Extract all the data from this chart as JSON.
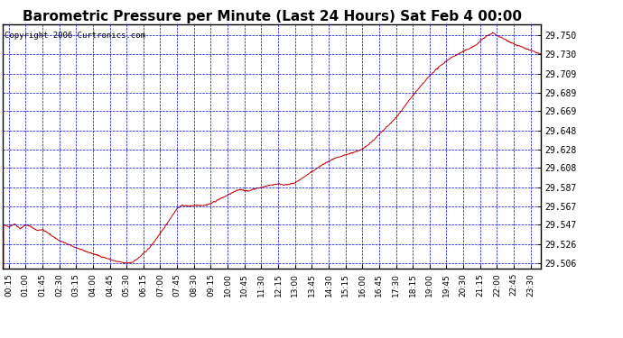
{
  "title": "Barometric Pressure per Minute (Last 24 Hours) Sat Feb 4 00:00",
  "copyright": "Copyright 2006 Curtronics.com",
  "line_color": "#cc0000",
  "background_color": "#ffffff",
  "plot_bg_color": "#ffffff",
  "grid_color": "#0000cc",
  "yticks": [
    29.506,
    29.526,
    29.547,
    29.567,
    29.587,
    29.608,
    29.628,
    29.648,
    29.669,
    29.689,
    29.709,
    29.73,
    29.75
  ],
  "ymin": 29.5,
  "ymax": 29.762,
  "xtick_labels": [
    "00:15",
    "01:00",
    "01:45",
    "02:30",
    "03:15",
    "04:00",
    "04:45",
    "05:30",
    "06:15",
    "07:00",
    "07:45",
    "08:30",
    "09:15",
    "10:00",
    "10:45",
    "11:30",
    "12:15",
    "13:00",
    "13:45",
    "14:30",
    "15:15",
    "16:00",
    "16:45",
    "17:30",
    "18:15",
    "19:00",
    "19:45",
    "20:30",
    "21:15",
    "22:00",
    "22:45",
    "23:30"
  ],
  "title_fontsize": 11,
  "copyright_fontsize": 6.5,
  "tick_fontsize": 6.5,
  "ytick_fontsize": 7,
  "control_points": [
    [
      0,
      29.547
    ],
    [
      15,
      29.545
    ],
    [
      30,
      29.548
    ],
    [
      45,
      29.543
    ],
    [
      60,
      29.547
    ],
    [
      75,
      29.545
    ],
    [
      90,
      29.541
    ],
    [
      105,
      29.542
    ],
    [
      120,
      29.538
    ],
    [
      150,
      29.53
    ],
    [
      180,
      29.525
    ],
    [
      210,
      29.52
    ],
    [
      240,
      29.516
    ],
    [
      270,
      29.512
    ],
    [
      300,
      29.508
    ],
    [
      315,
      29.507
    ],
    [
      325,
      29.506
    ],
    [
      330,
      29.506
    ],
    [
      345,
      29.507
    ],
    [
      360,
      29.511
    ],
    [
      390,
      29.522
    ],
    [
      420,
      29.538
    ],
    [
      450,
      29.556
    ],
    [
      465,
      29.565
    ],
    [
      480,
      29.568
    ],
    [
      495,
      29.567
    ],
    [
      510,
      29.568
    ],
    [
      525,
      29.568
    ],
    [
      540,
      29.568
    ],
    [
      555,
      29.57
    ],
    [
      570,
      29.573
    ],
    [
      585,
      29.576
    ],
    [
      600,
      29.579
    ],
    [
      615,
      29.582
    ],
    [
      625,
      29.584
    ],
    [
      635,
      29.585
    ],
    [
      645,
      29.584
    ],
    [
      655,
      29.583
    ],
    [
      665,
      29.585
    ],
    [
      675,
      29.586
    ],
    [
      690,
      29.587
    ],
    [
      705,
      29.589
    ],
    [
      720,
      29.59
    ],
    [
      735,
      29.591
    ],
    [
      750,
      29.59
    ],
    [
      760,
      29.59
    ],
    [
      770,
      29.591
    ],
    [
      780,
      29.592
    ],
    [
      795,
      29.596
    ],
    [
      810,
      29.6
    ],
    [
      825,
      29.604
    ],
    [
      840,
      29.608
    ],
    [
      855,
      29.612
    ],
    [
      870,
      29.615
    ],
    [
      885,
      29.618
    ],
    [
      900,
      29.62
    ],
    [
      915,
      29.622
    ],
    [
      930,
      29.624
    ],
    [
      945,
      29.626
    ],
    [
      960,
      29.628
    ],
    [
      975,
      29.633
    ],
    [
      990,
      29.638
    ],
    [
      1005,
      29.644
    ],
    [
      1020,
      29.65
    ],
    [
      1035,
      29.656
    ],
    [
      1050,
      29.662
    ],
    [
      1065,
      29.67
    ],
    [
      1080,
      29.678
    ],
    [
      1095,
      29.686
    ],
    [
      1110,
      29.693
    ],
    [
      1125,
      29.7
    ],
    [
      1140,
      29.707
    ],
    [
      1155,
      29.713
    ],
    [
      1170,
      29.718
    ],
    [
      1185,
      29.723
    ],
    [
      1200,
      29.727
    ],
    [
      1215,
      29.73
    ],
    [
      1230,
      29.733
    ],
    [
      1245,
      29.736
    ],
    [
      1260,
      29.739
    ],
    [
      1270,
      29.742
    ],
    [
      1280,
      29.746
    ],
    [
      1290,
      29.749
    ],
    [
      1295,
      29.75
    ],
    [
      1300,
      29.751
    ],
    [
      1305,
      29.752
    ],
    [
      1308,
      29.753
    ],
    [
      1312,
      29.752
    ],
    [
      1320,
      29.75
    ],
    [
      1335,
      29.747
    ],
    [
      1350,
      29.744
    ],
    [
      1370,
      29.74
    ],
    [
      1390,
      29.737
    ],
    [
      1410,
      29.734
    ],
    [
      1437,
      29.73
    ]
  ]
}
